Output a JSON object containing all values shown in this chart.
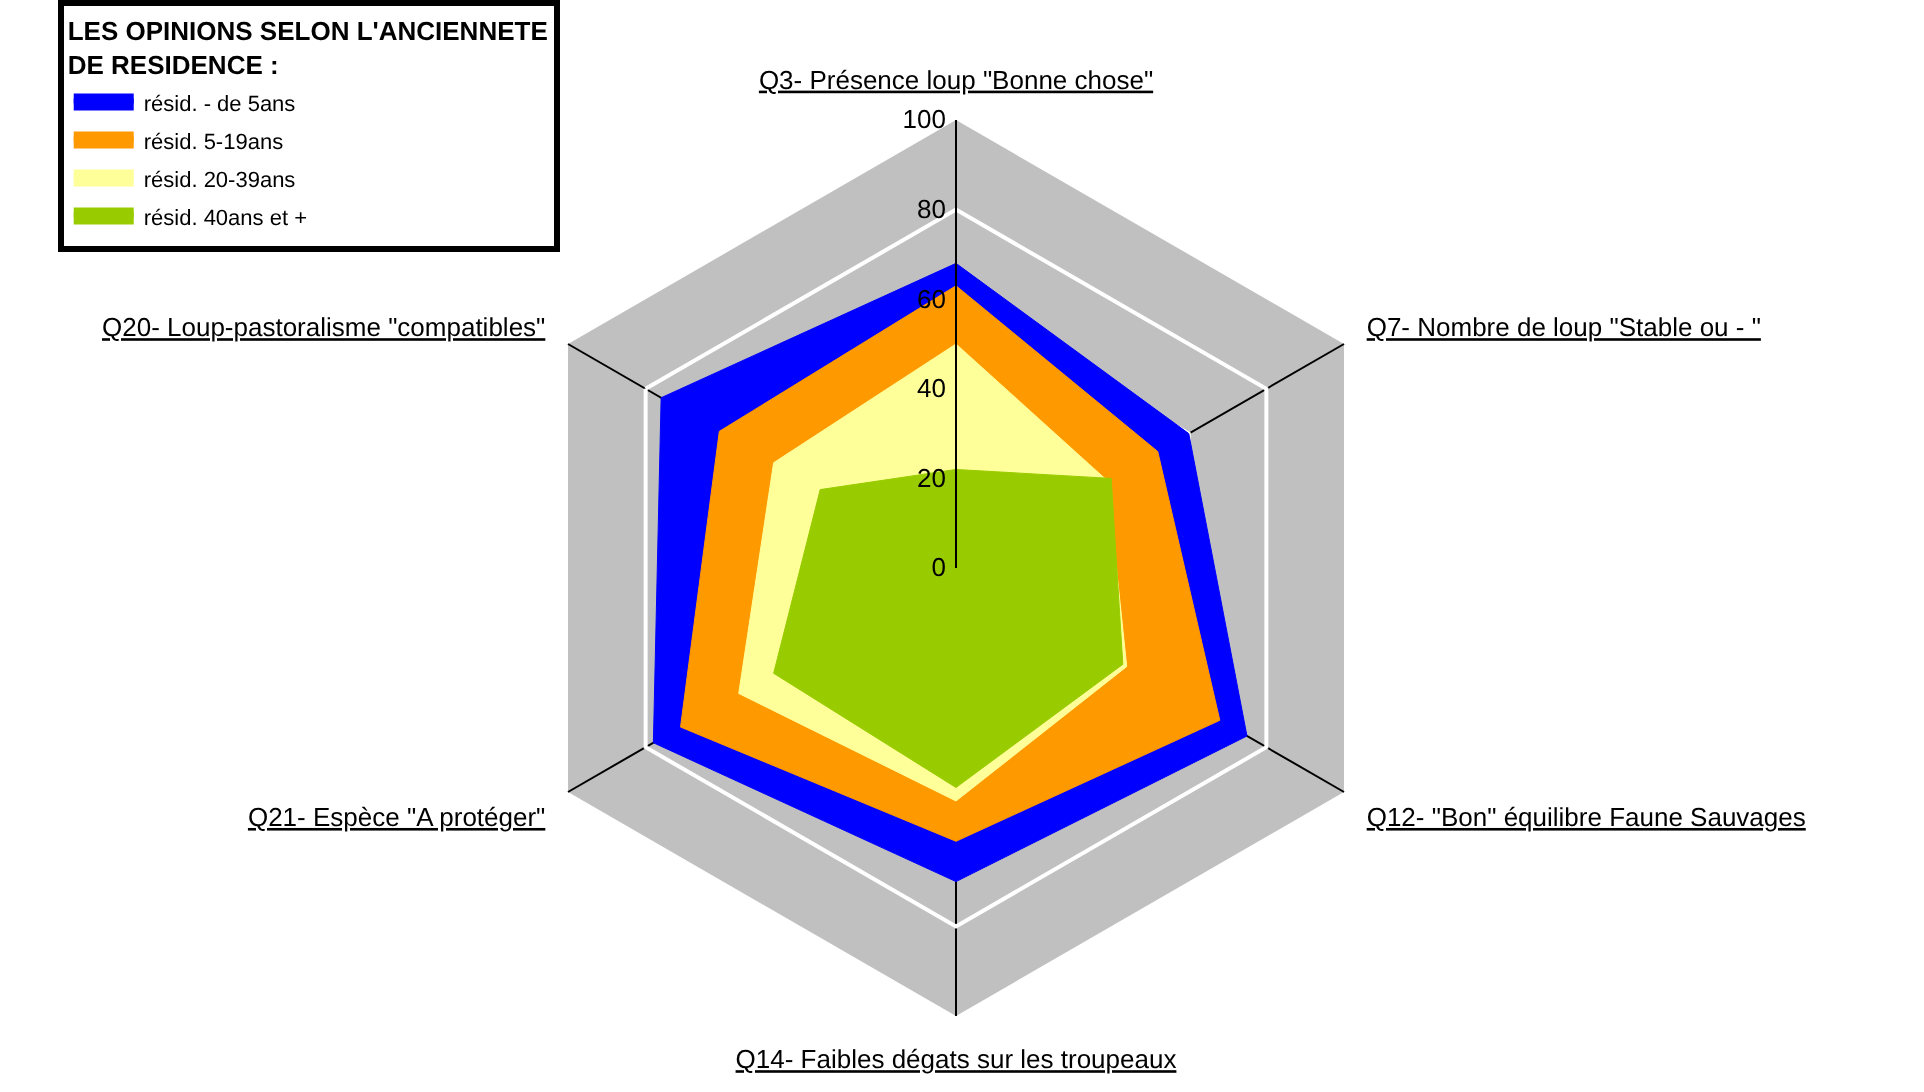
{
  "chart_data": {
    "type": "radar",
    "legend_title": "LES OPINIONS SELON L'ANCIENNETE\nDE RESIDENCE :",
    "categories": [
      "Q3- Présence loup \"Bonne chose\"",
      "Q7- Nombre de loup \"Stable ou - \"",
      "Q12- \"Bon\" équilibre Faune Sauvages",
      "Q14- Faibles dégats sur les troupeaux",
      "Q21- Espèce \"A protéger\"",
      "Q20- Loup-pastoralisme \"compatibles\""
    ],
    "series": [
      {
        "name": "résid. - de 5ans",
        "color": "#0000ff",
        "values": [
          68,
          60,
          75,
          70,
          78,
          76
        ]
      },
      {
        "name": "résid. 5-19ans",
        "color": "#ff9900",
        "values": [
          63,
          52,
          68,
          61,
          71,
          61
        ]
      },
      {
        "name": "résid. 20-39ans",
        "color": "#ffff99",
        "values": [
          50,
          39,
          44,
          52,
          56,
          47
        ]
      },
      {
        "name": "résid. 40ans et +",
        "color": "#99cc00",
        "values": [
          22,
          40,
          43,
          49,
          47,
          35
        ]
      }
    ],
    "ylim": [
      0,
      100
    ],
    "yticks": [
      0,
      20,
      40,
      60,
      80,
      100
    ],
    "grid": true,
    "legend": "top left"
  }
}
